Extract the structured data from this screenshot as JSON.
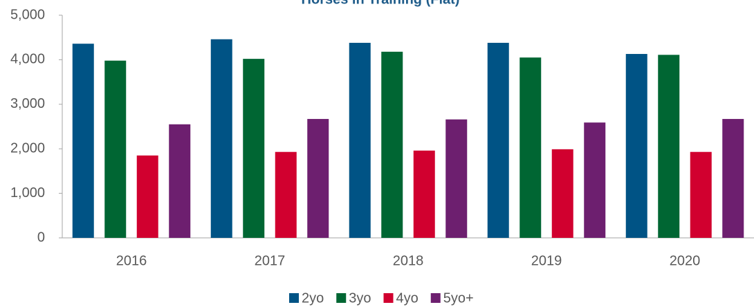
{
  "chart_data": {
    "type": "bar",
    "title": "Horses in Training (Flat)",
    "categories": [
      "2016",
      "2017",
      "2018",
      "2019",
      "2020"
    ],
    "series": [
      {
        "name": "2yo",
        "color": "#005385",
        "values": [
          4360,
          4460,
          4380,
          4380,
          4130
        ]
      },
      {
        "name": "3yo",
        "color": "#006633",
        "values": [
          3980,
          4020,
          4180,
          4050,
          4110
        ]
      },
      {
        "name": "4yo",
        "color": "#d1002f",
        "values": [
          1850,
          1930,
          1960,
          1990,
          1930
        ]
      },
      {
        "name": "5yo+",
        "color": "#6d1f6f",
        "values": [
          2550,
          2670,
          2660,
          2590,
          2670
        ]
      }
    ],
    "ylim": [
      0,
      5000
    ],
    "yticks": [
      0,
      {
        "value": 1000,
        "label": "1,000"
      },
      {
        "value": 2000,
        "label": "2,000"
      },
      {
        "value": 3000,
        "label": "3,000"
      },
      {
        "value": 4000,
        "label": "4,000"
      },
      {
        "value": 5000,
        "label": "5,000"
      }
    ],
    "legend": "bottom"
  }
}
